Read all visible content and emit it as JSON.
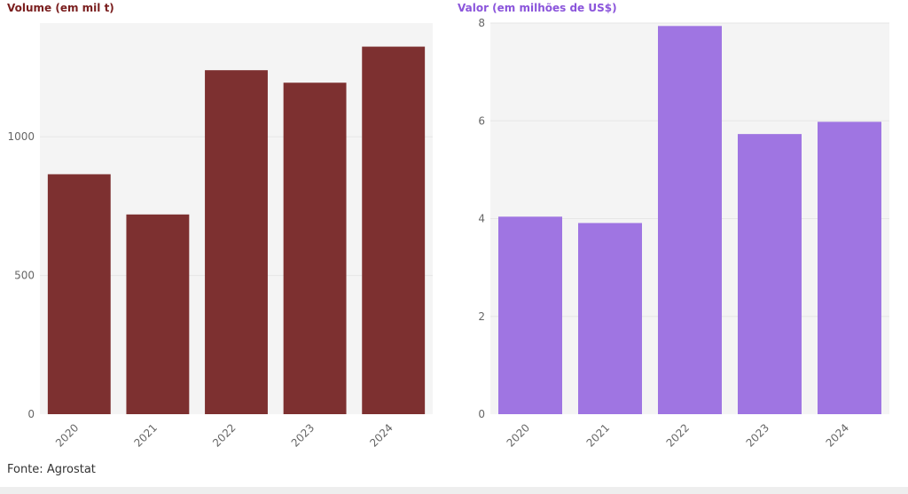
{
  "chart_data": [
    {
      "type": "bar",
      "title": "Volume (em mil t)",
      "categories": [
        "2020",
        "2021",
        "2022",
        "2023",
        "2024"
      ],
      "values": [
        865,
        720,
        1240,
        1195,
        1325
      ],
      "ylim": [
        0,
        1410
      ],
      "yticks": [
        0,
        500,
        1000
      ],
      "color": "#7d3030",
      "title_color": "#7a1e1e",
      "grid": true,
      "xlabel": "",
      "ylabel": ""
    },
    {
      "type": "bar",
      "title": "Valor (em milhões de US$)",
      "categories": [
        "2020",
        "2021",
        "2022",
        "2023",
        "2024"
      ],
      "values": [
        4.04,
        3.91,
        7.94,
        5.73,
        5.98
      ],
      "ylim": [
        0,
        8
      ],
      "yticks": [
        0,
        2,
        4,
        6,
        8
      ],
      "color": "#9f75e2",
      "title_color": "#8b55db",
      "grid": true,
      "xlabel": "",
      "ylabel": ""
    }
  ],
  "source": "Fonte: Agrostat"
}
